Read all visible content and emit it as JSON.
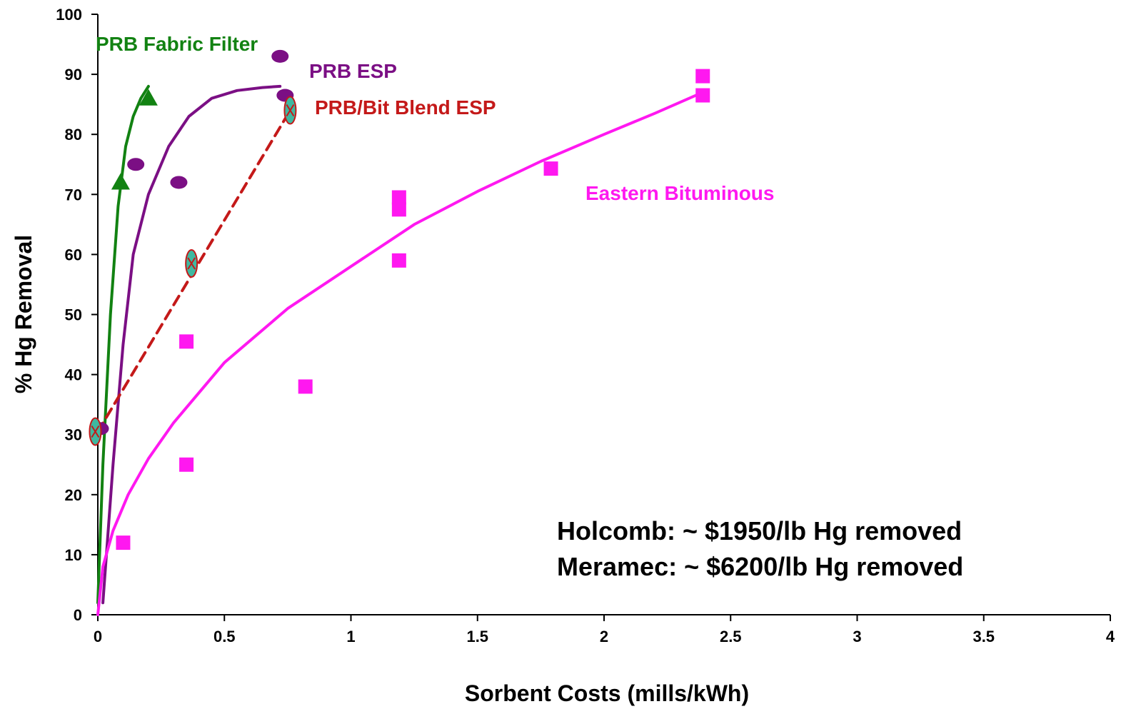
{
  "chart_data": {
    "type": "scatter",
    "title": "",
    "xlabel": "Sorbent Costs (mills/kWh)",
    "ylabel": "% Hg Removal",
    "xlim": [
      0,
      4
    ],
    "ylim": [
      0,
      100
    ],
    "xticks": [
      "0",
      "0.5",
      "1",
      "1.5",
      "2",
      "2.5",
      "3",
      "3.5",
      "4"
    ],
    "yticks": [
      "0",
      "10",
      "20",
      "30",
      "40",
      "50",
      "60",
      "70",
      "80",
      "90",
      "100"
    ],
    "grid": false,
    "series": [
      {
        "name": "PRB Fabric Filter",
        "color": "#128212",
        "marker": "triangle",
        "points": [
          [
            0.09,
            72
          ],
          [
            0.2,
            86
          ]
        ],
        "fit": [
          [
            0,
            2
          ],
          [
            0.02,
            25
          ],
          [
            0.05,
            50
          ],
          [
            0.08,
            68
          ],
          [
            0.11,
            78
          ],
          [
            0.14,
            83
          ],
          [
            0.17,
            86
          ],
          [
            0.2,
            88
          ]
        ]
      },
      {
        "name": "PRB ESP",
        "color": "#7b0f84",
        "marker": "ellipse",
        "points": [
          [
            0.01,
            31
          ],
          [
            0.15,
            75
          ],
          [
            0.32,
            72
          ],
          [
            0.72,
            93
          ],
          [
            0.74,
            86.5
          ]
        ],
        "fit": [
          [
            0.02,
            2
          ],
          [
            0.06,
            25
          ],
          [
            0.1,
            45
          ],
          [
            0.14,
            60
          ],
          [
            0.2,
            70
          ],
          [
            0.28,
            78
          ],
          [
            0.36,
            83
          ],
          [
            0.45,
            86
          ],
          [
            0.55,
            87.3
          ],
          [
            0.65,
            87.8
          ],
          [
            0.72,
            88
          ]
        ]
      },
      {
        "name": "PRB/Bit Blend ESP",
        "color": "#c41919",
        "marker": "crossed-ellipse",
        "points": [
          [
            -0.01,
            30.5
          ],
          [
            0.37,
            58.5
          ],
          [
            0.76,
            84
          ]
        ],
        "fit": [
          [
            0,
            30.5
          ],
          [
            0.76,
            84
          ]
        ]
      },
      {
        "name": "Eastern Bituminous",
        "color": "#ff18f0",
        "marker": "square",
        "points": [
          [
            0.1,
            12
          ],
          [
            0.35,
            25
          ],
          [
            0.35,
            45.5
          ],
          [
            0.82,
            38
          ],
          [
            1.19,
            59
          ],
          [
            1.19,
            67.5
          ],
          [
            1.19,
            69.5
          ],
          [
            1.79,
            74.3
          ],
          [
            2.39,
            86.5
          ],
          [
            2.39,
            89.7
          ]
        ],
        "fit": [
          [
            0,
            0
          ],
          [
            0.02,
            8
          ],
          [
            0.06,
            14
          ],
          [
            0.12,
            20
          ],
          [
            0.2,
            26
          ],
          [
            0.3,
            32
          ],
          [
            0.5,
            42
          ],
          [
            0.75,
            51
          ],
          [
            1.0,
            58
          ],
          [
            1.25,
            65
          ],
          [
            1.5,
            70.5
          ],
          [
            1.75,
            75.5
          ],
          [
            2.0,
            80
          ],
          [
            2.2,
            83.5
          ],
          [
            2.39,
            87
          ]
        ]
      }
    ],
    "annotations": [
      "Holcomb: ~ $1950/lb Hg removed",
      "Meramec: ~ $6200/lb Hg removed"
    ]
  }
}
